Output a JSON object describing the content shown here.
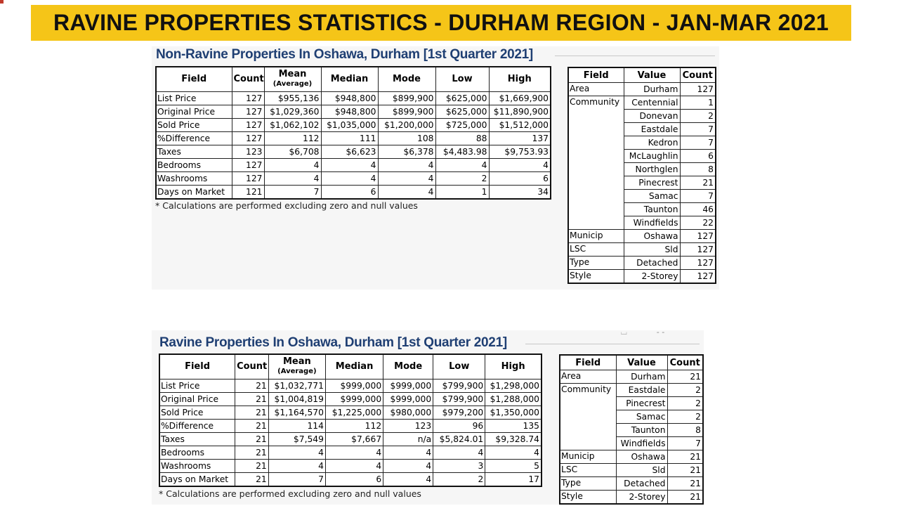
{
  "banner": "RAVINE PROPERTIES STATISTICS - DURHAM REGION - JAN-MAR 2021",
  "stats_headers": {
    "field": "Field",
    "count": "Count",
    "mean": "Mean",
    "mean_sub": "(Average)",
    "median": "Median",
    "mode": "Mode",
    "low": "Low",
    "high": "High"
  },
  "comm_headers": {
    "field": "Field",
    "value": "Value",
    "count": "Count"
  },
  "footnote": "* Calculations are performed excluding zero and null values",
  "top": {
    "title": "Non-Ravine Properties In Oshawa, Durham [1st Quarter 2021]",
    "rows": [
      {
        "field": "List Price",
        "count": "127",
        "mean": "$955,136",
        "median": "$948,800",
        "mode": "$899,900",
        "low": "$625,000",
        "high": "$1,669,900"
      },
      {
        "field": "Original Price",
        "count": "127",
        "mean": "$1,029,360",
        "median": "$948,800",
        "mode": "$899,900",
        "low": "$625,000",
        "high": "$11,890,900"
      },
      {
        "field": "Sold Price",
        "count": "127",
        "mean": "$1,062,102",
        "median": "$1,035,000",
        "mode": "$1,200,000",
        "low": "$725,000",
        "high": "$1,512,000"
      },
      {
        "field": "%Difference",
        "count": "127",
        "mean": "112",
        "median": "111",
        "mode": "108",
        "low": "88",
        "high": "137"
      },
      {
        "field": "Taxes",
        "count": "123",
        "mean": "$6,708",
        "median": "$6,623",
        "mode": "$6,378",
        "low": "$4,483.98",
        "high": "$9,753.93"
      },
      {
        "field": "Bedrooms",
        "count": "127",
        "mean": "4",
        "median": "4",
        "mode": "4",
        "low": "4",
        "high": "4"
      },
      {
        "field": "Washrooms",
        "count": "127",
        "mean": "4",
        "median": "4",
        "mode": "4",
        "low": "2",
        "high": "6"
      },
      {
        "field": "Days on Market",
        "count": "121",
        "mean": "7",
        "median": "6",
        "mode": "4",
        "low": "1",
        "high": "34"
      }
    ],
    "area": {
      "field": "Area",
      "value": "Durham",
      "count": "127"
    },
    "community_label": "Community",
    "communities": [
      {
        "value": "Centennial",
        "count": "1"
      },
      {
        "value": "Donevan",
        "count": "2"
      },
      {
        "value": "Eastdale",
        "count": "7"
      },
      {
        "value": "Kedron",
        "count": "7"
      },
      {
        "value": "McLaughlin",
        "count": "6"
      },
      {
        "value": "Northglen",
        "count": "8"
      },
      {
        "value": "Pinecrest",
        "count": "21"
      },
      {
        "value": "Samac",
        "count": "7"
      },
      {
        "value": "Taunton",
        "count": "46"
      },
      {
        "value": "Windfields",
        "count": "22"
      }
    ],
    "tail": [
      {
        "field": "Municip",
        "value": "Oshawa",
        "count": "127"
      },
      {
        "field": "LSC",
        "value": "Sld",
        "count": "127"
      },
      {
        "field": "Type",
        "value": "Detached",
        "count": "127"
      },
      {
        "field": "Style",
        "value": "2-Storey",
        "count": "127"
      }
    ]
  },
  "bottom": {
    "title": "Ravine Properties In Oshawa, Durham [1st Quarter 2021]",
    "rows": [
      {
        "field": "List Price",
        "count": "21",
        "mean": "$1,032,771",
        "median": "$999,000",
        "mode": "$999,000",
        "low": "$799,900",
        "high": "$1,298,000"
      },
      {
        "field": "Original Price",
        "count": "21",
        "mean": "$1,004,819",
        "median": "$999,000",
        "mode": "$999,000",
        "low": "$799,900",
        "high": "$1,288,000"
      },
      {
        "field": "Sold Price",
        "count": "21",
        "mean": "$1,164,570",
        "median": "$1,225,000",
        "mode": "$980,000",
        "low": "$979,200",
        "high": "$1,350,000"
      },
      {
        "field": "%Difference",
        "count": "21",
        "mean": "114",
        "median": "112",
        "mode": "123",
        "low": "96",
        "high": "135"
      },
      {
        "field": "Taxes",
        "count": "21",
        "mean": "$7,549",
        "median": "$7,667",
        "mode": "n/a",
        "low": "$5,824.01",
        "high": "$9,328.74"
      },
      {
        "field": "Bedrooms",
        "count": "21",
        "mean": "4",
        "median": "4",
        "mode": "4",
        "low": "4",
        "high": "4"
      },
      {
        "field": "Washrooms",
        "count": "21",
        "mean": "4",
        "median": "4",
        "mode": "4",
        "low": "3",
        "high": "5"
      },
      {
        "field": "Days on Market",
        "count": "21",
        "mean": "7",
        "median": "6",
        "mode": "4",
        "low": "2",
        "high": "17"
      }
    ],
    "area": {
      "field": "Area",
      "value": "Durham",
      "count": "21"
    },
    "community_label": "Community",
    "communities": [
      {
        "value": "Eastdale",
        "count": "2"
      },
      {
        "value": "Pinecrest",
        "count": "2"
      },
      {
        "value": "Samac",
        "count": "2"
      },
      {
        "value": "Taunton",
        "count": "8"
      },
      {
        "value": "Windfields",
        "count": "7"
      }
    ],
    "tail": [
      {
        "field": "Municip",
        "value": "Oshawa",
        "count": "21"
      },
      {
        "field": "LSC",
        "value": "Sld",
        "count": "21"
      },
      {
        "field": "Type",
        "value": "Detached",
        "count": "21"
      },
      {
        "field": "Style",
        "value": "2-Storey",
        "count": "21"
      }
    ]
  }
}
